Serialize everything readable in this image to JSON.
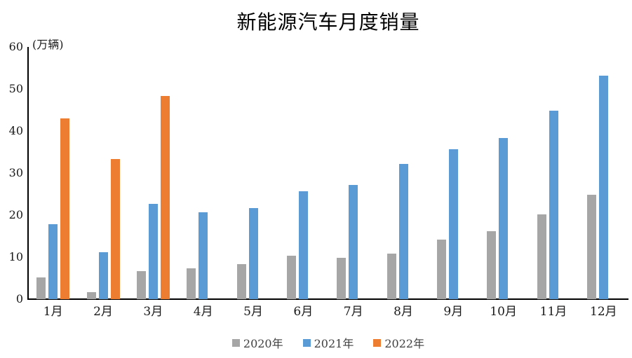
{
  "chart_data": {
    "type": "bar",
    "title": "新能源汽车月度销量",
    "ylabel": "(万辆)",
    "xlabel": "",
    "categories": [
      "1月",
      "2月",
      "3月",
      "4月",
      "5月",
      "6月",
      "7月",
      "8月",
      "9月",
      "10月",
      "11月",
      "12月"
    ],
    "series": [
      {
        "name": "2020年",
        "color": "#A6A6A6",
        "values": [
          5.2,
          1.6,
          6.6,
          7.4,
          8.3,
          10.4,
          9.8,
          10.9,
          14.1,
          16.1,
          20.1,
          24.8
        ]
      },
      {
        "name": "2021年",
        "color": "#5B9BD5",
        "values": [
          17.9,
          11.1,
          22.6,
          20.6,
          21.7,
          25.6,
          27.1,
          32.1,
          35.7,
          38.3,
          44.9,
          53.1
        ]
      },
      {
        "name": "2022年",
        "color": "#ED7D31",
        "values": [
          43.0,
          33.4,
          48.4,
          null,
          null,
          null,
          null,
          null,
          null,
          null,
          null,
          null
        ]
      }
    ],
    "ylim": [
      0,
      60
    ],
    "yticks": [
      0,
      10,
      20,
      30,
      40,
      50,
      60
    ],
    "grid": false,
    "legend_position": "bottom",
    "axis_color": "#000000",
    "background": "#ffffff"
  }
}
